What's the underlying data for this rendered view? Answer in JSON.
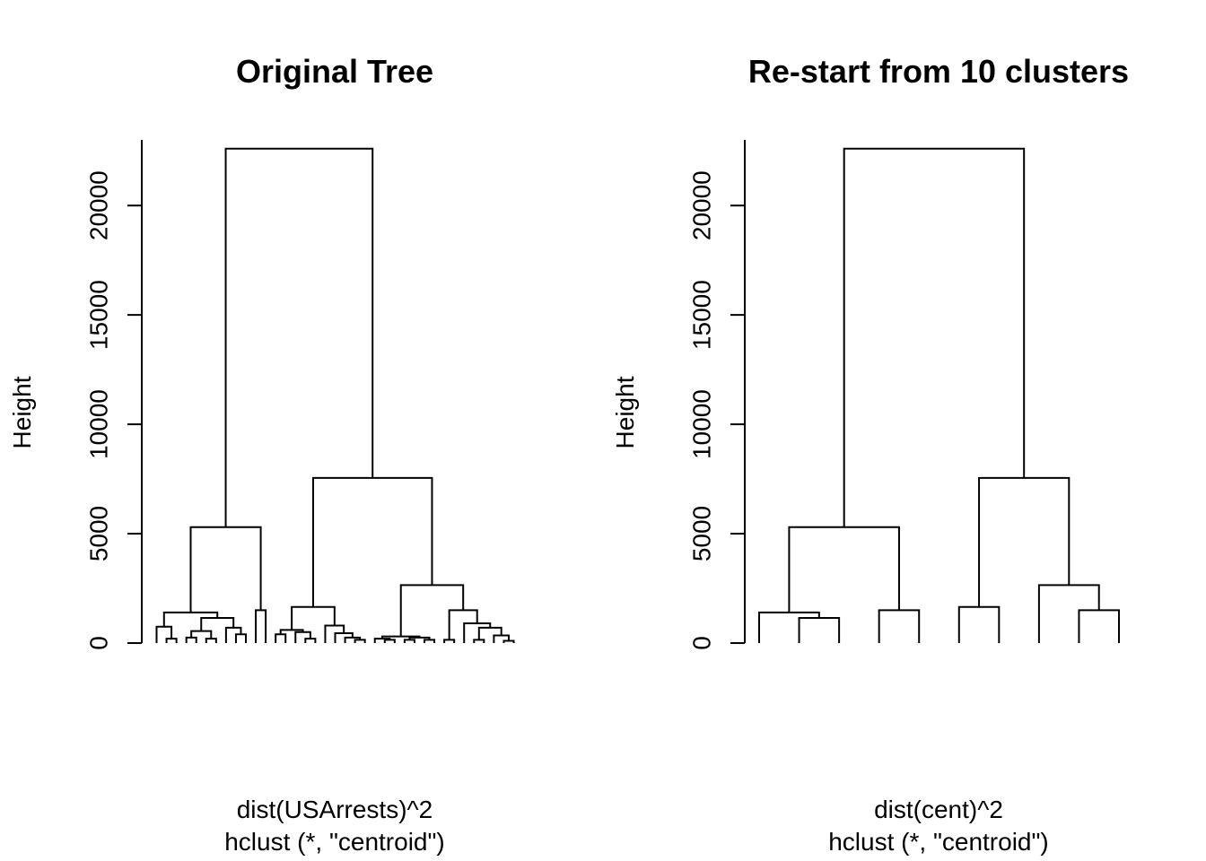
{
  "chart_data": [
    {
      "type": "dendrogram",
      "title": "Original Tree",
      "ylabel": "Height",
      "xlabel": "dist(USArrests)^2",
      "sublabel": "hclust (*, \"centroid\")",
      "ylim": [
        0,
        23000
      ],
      "yticks": [
        0,
        5000,
        10000,
        15000,
        20000
      ],
      "tree": {
        "h": 22600,
        "c": [
          {
            "h": 5300,
            "c": [
              {
                "h": 1400,
                "c": [
                  {
                    "h": 750,
                    "c": [
                      {
                        "h": 0
                      },
                      {
                        "h": 200,
                        "c": [
                          {
                            "h": 0
                          },
                          {
                            "h": 0
                          }
                        ]
                      }
                    ]
                  },
                  {
                    "h": 1150,
                    "c": [
                      {
                        "h": 550,
                        "c": [
                          {
                            "h": 250,
                            "c": [
                              {
                                "h": 0
                              },
                              {
                                "h": 0
                              }
                            ]
                          },
                          {
                            "h": 200,
                            "c": [
                              {
                                "h": 0
                              },
                              {
                                "h": 0
                              }
                            ]
                          }
                        ]
                      },
                      {
                        "h": 700,
                        "c": [
                          {
                            "h": 0
                          },
                          {
                            "h": 400,
                            "c": [
                              {
                                "h": 0
                              },
                              {
                                "h": 0
                              }
                            ]
                          }
                        ]
                      }
                    ]
                  }
                ]
              },
              {
                "h": 1500,
                "c": [
                  {
                    "h": 0
                  },
                  {
                    "h": 0
                  }
                ]
              }
            ]
          },
          {
            "h": 7550,
            "c": [
              {
                "h": 1650,
                "c": [
                  {
                    "h": 600,
                    "c": [
                      {
                        "h": 400,
                        "c": [
                          {
                            "h": 0
                          },
                          {
                            "h": 0
                          }
                        ]
                      },
                      {
                        "h": 500,
                        "c": [
                          {
                            "h": 0
                          },
                          {
                            "h": 200,
                            "c": [
                              {
                                "h": 0
                              },
                              {
                                "h": 0
                              }
                            ]
                          }
                        ]
                      }
                    ]
                  },
                  {
                    "h": 800,
                    "c": [
                      {
                        "h": 0
                      },
                      {
                        "h": 450,
                        "c": [
                          {
                            "h": 0
                          },
                          {
                            "h": 250,
                            "c": [
                              {
                                "h": 0
                              },
                              {
                                "h": 150,
                                "c": [
                                  {
                                    "h": 0
                                  },
                                  {
                                    "h": 0
                                  }
                                ]
                              }
                            ]
                          }
                        ]
                      }
                    ]
                  }
                ]
              },
              {
                "h": 2650,
                "c": [
                  {
                    "h": 300,
                    "c": [
                      {
                        "h": 200,
                        "c": [
                          {
                            "h": 0
                          },
                          {
                            "h": 150,
                            "c": [
                              {
                                "h": 0
                              },
                              {
                                "h": 0
                              }
                            ]
                          }
                        ]
                      },
                      {
                        "h": 250,
                        "c": [
                          {
                            "h": 150,
                            "c": [
                              {
                                "h": 0
                              },
                              {
                                "h": 0
                              }
                            ]
                          },
                          {
                            "h": 150,
                            "c": [
                              {
                                "h": 0
                              },
                              {
                                "h": 0
                              }
                            ]
                          }
                        ]
                      }
                    ]
                  },
                  {
                    "h": 1500,
                    "c": [
                      {
                        "h": 150,
                        "c": [
                          {
                            "h": 0
                          },
                          {
                            "h": 0
                          }
                        ]
                      },
                      {
                        "h": 900,
                        "c": [
                          {
                            "h": 0
                          },
                          {
                            "h": 700,
                            "c": [
                              {
                                "h": 150,
                                "c": [
                                  {
                                    "h": 0
                                  },
                                  {
                                    "h": 0
                                  }
                                ]
                              },
                              {
                                "h": 350,
                                "c": [
                                  {
                                    "h": 0
                                  },
                                  {
                                    "h": 100,
                                    "c": [
                                      {
                                        "h": 0
                                      },
                                      {
                                        "h": 0
                                      }
                                    ]
                                  }
                                ]
                              }
                            ]
                          }
                        ]
                      }
                    ]
                  }
                ]
              }
            ]
          }
        ]
      }
    },
    {
      "type": "dendrogram",
      "title": "Re-start from 10 clusters",
      "ylabel": "Height",
      "xlabel": "dist(cent)^2",
      "sublabel": "hclust (*, \"centroid\")",
      "ylim": [
        0,
        23000
      ],
      "yticks": [
        0,
        5000,
        10000,
        15000,
        20000
      ],
      "tree": {
        "h": 22600,
        "c": [
          {
            "h": 5300,
            "c": [
              {
                "h": 1400,
                "c": [
                  {
                    "h": 0
                  },
                  {
                    "h": 1150,
                    "c": [
                      {
                        "h": 0
                      },
                      {
                        "h": 0
                      }
                    ]
                  }
                ]
              },
              {
                "h": 1500,
                "c": [
                  {
                    "h": 0
                  },
                  {
                    "h": 0
                  }
                ]
              }
            ]
          },
          {
            "h": 7550,
            "c": [
              {
                "h": 1650,
                "c": [
                  {
                    "h": 0
                  },
                  {
                    "h": 0
                  }
                ]
              },
              {
                "h": 2650,
                "c": [
                  {
                    "h": 0
                  },
                  {
                    "h": 1500,
                    "c": [
                      {
                        "h": 0
                      },
                      {
                        "h": 0
                      }
                    ]
                  }
                ]
              }
            ]
          }
        ]
      }
    }
  ]
}
